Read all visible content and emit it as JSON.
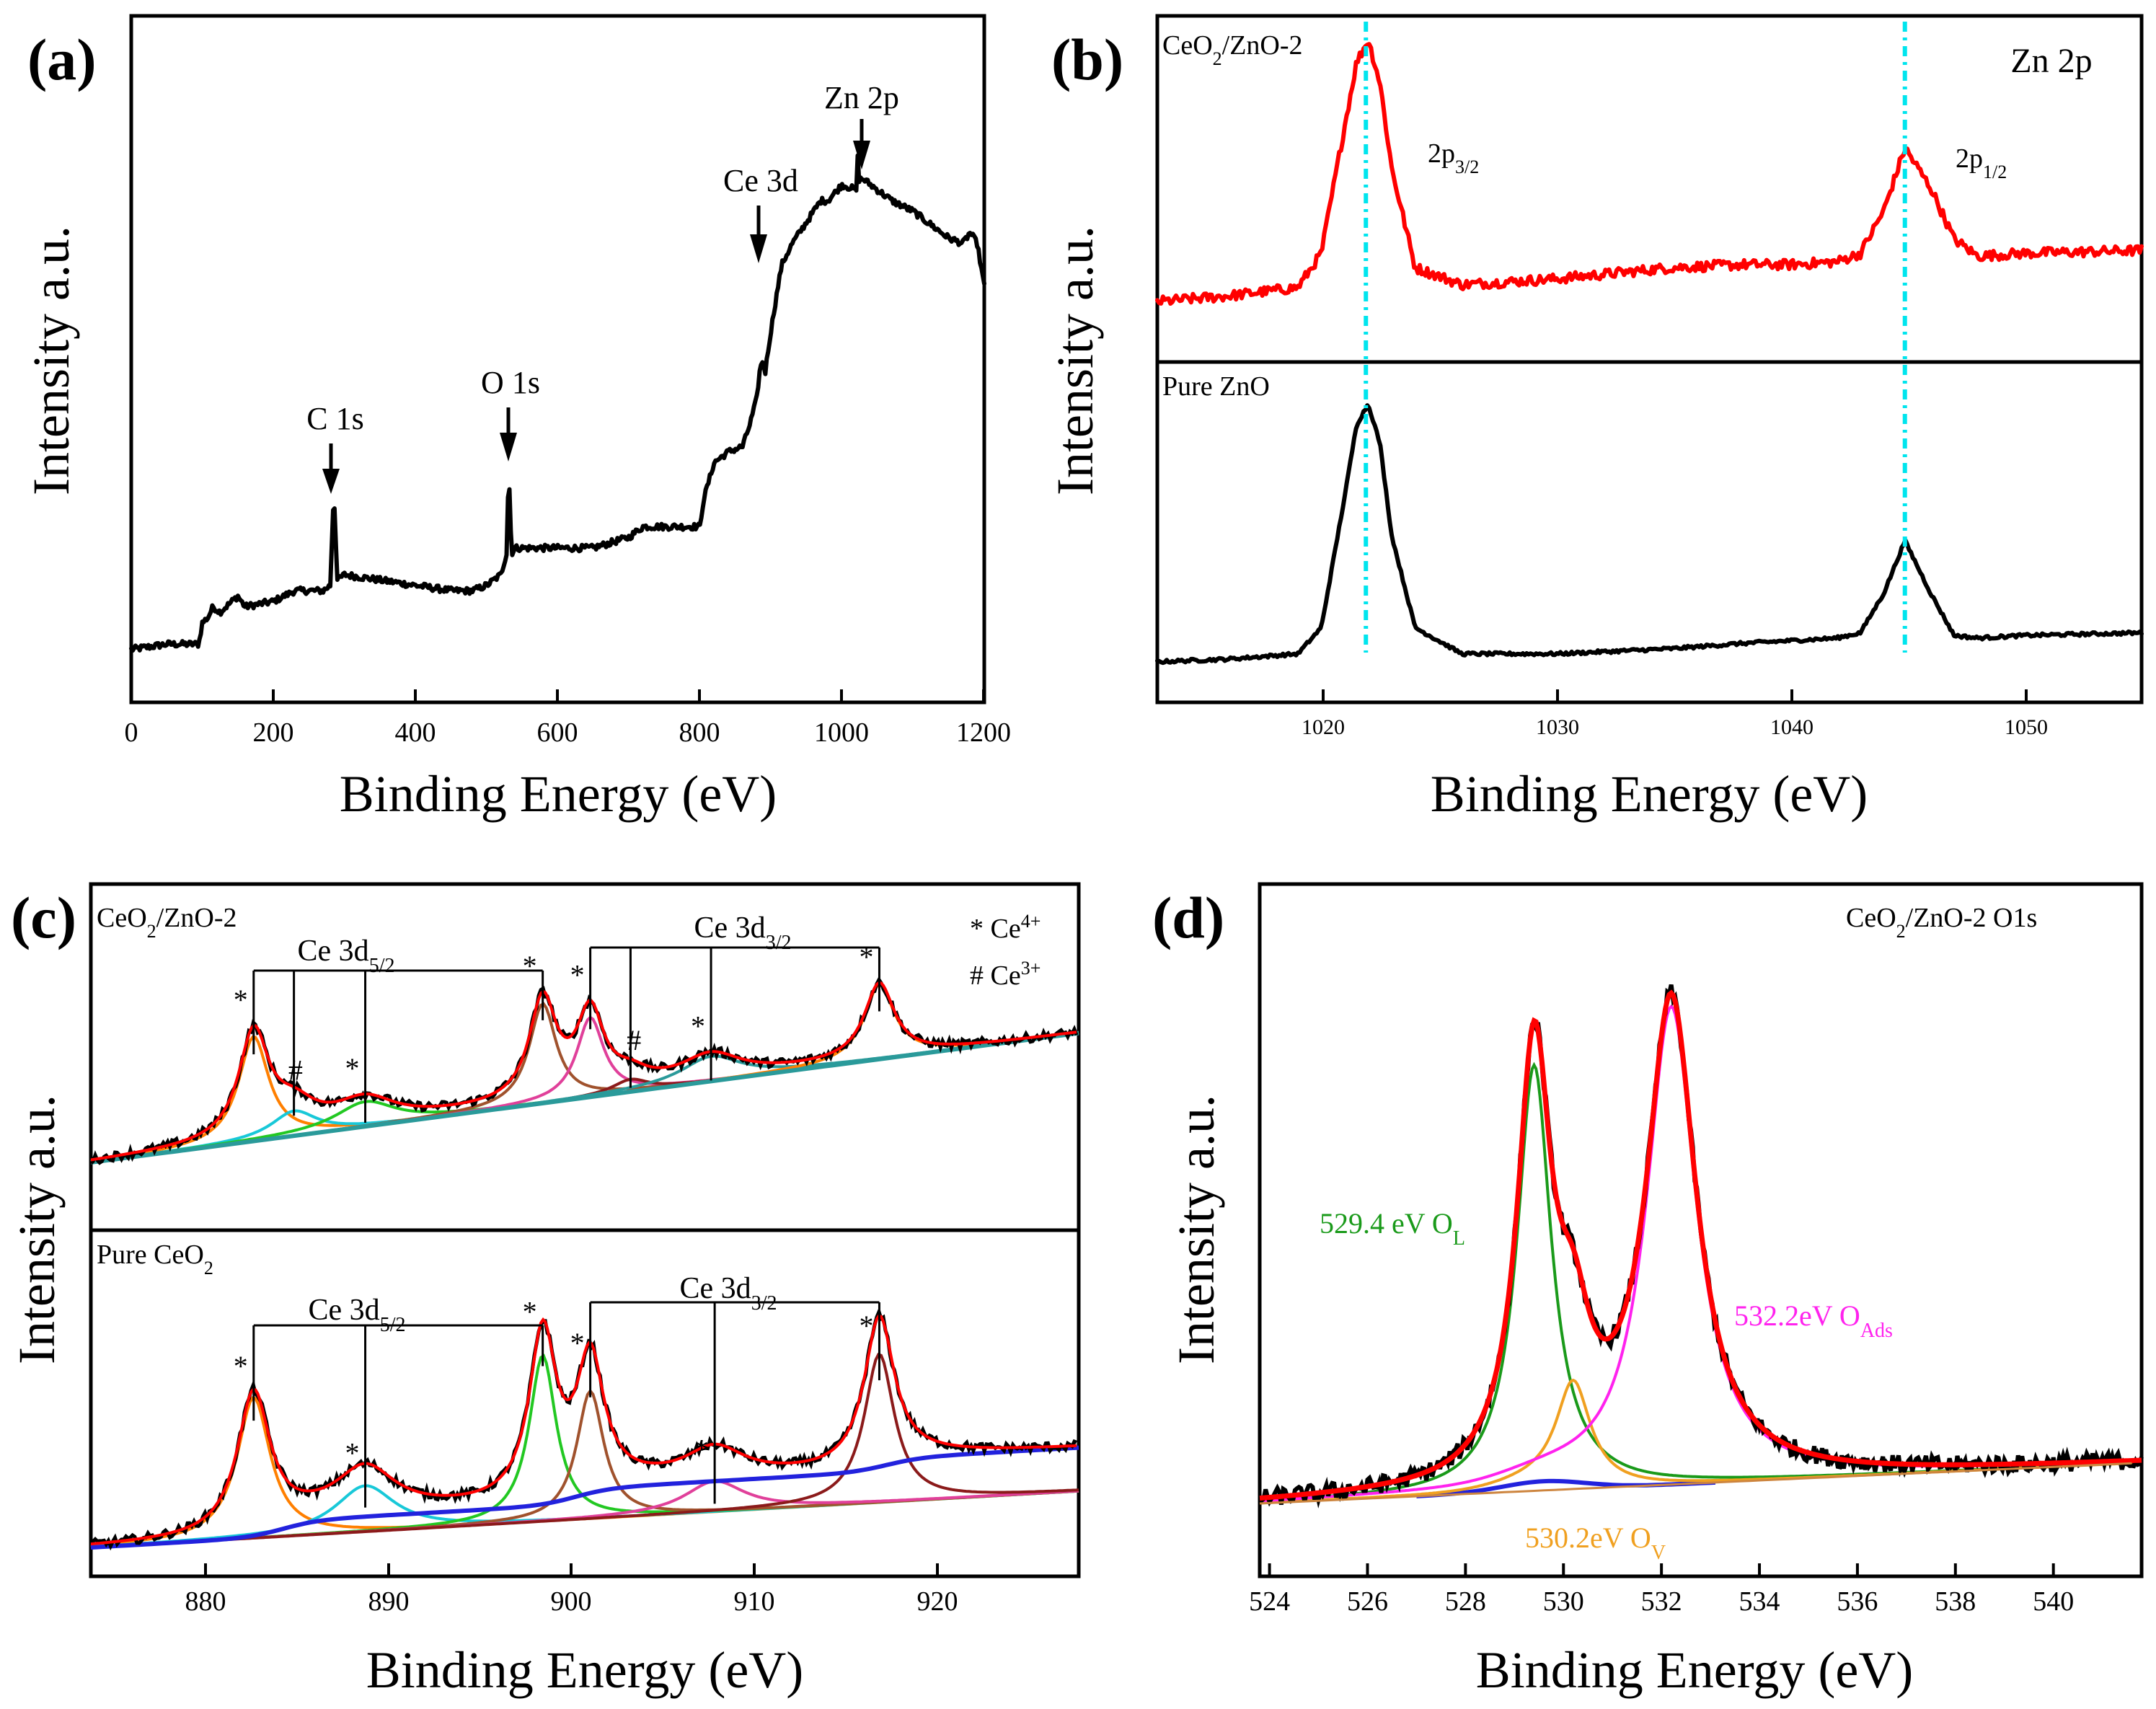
{
  "colors": {
    "data_black": "#000000",
    "fit_red": "#ff0000",
    "guide_cyan": "#00e5ee",
    "ol_green": "#1a9a1a",
    "ov_orange": "#f0a020",
    "oads_magenta": "#ff22ee",
    "bg_blue": "#2222dd",
    "c_orange": "#ff7f00",
    "c_cyan": "#18c8d8",
    "c_green": "#22c822",
    "c_brown": "#a0522d",
    "c_pink": "#e0409a",
    "c_darkred": "#8b1a1a",
    "c_teal": "#2a9a9a"
  },
  "chart_data": [
    {
      "panel": "(a)",
      "type": "line",
      "xlabel": "Binding Energy (eV)",
      "ylabel": "Intensity a.u.",
      "xlim": [
        0,
        1200
      ],
      "ylim": [
        0,
        1
      ],
      "xticks": [
        0,
        200,
        400,
        600,
        800,
        1000,
        1200
      ],
      "annotations": [
        {
          "text": "C 1s",
          "x": 285
        },
        {
          "text": "O 1s",
          "x": 531
        },
        {
          "text": "Ce 3d",
          "x": 885
        },
        {
          "text": "Zn 2p",
          "x": 1022
        }
      ],
      "series": [
        {
          "name": "survey",
          "x": [
            0,
            50,
            95,
            100,
            108,
            115,
            125,
            150,
            160,
            200,
            230,
            250,
            270,
            280,
            285,
            290,
            300,
            350,
            400,
            450,
            480,
            500,
            520,
            528,
            531,
            535,
            540,
            600,
            650,
            700,
            720,
            760,
            800,
            805,
            820,
            840,
            860,
            870,
            880,
            884,
            888,
            892,
            898,
            905,
            915,
            930,
            950,
            970,
            980,
            1000,
            1020,
            1022,
            1024,
            1030,
            1050,
            1070,
            1100,
            1130,
            1150,
            1170,
            1180,
            1190,
            1200
          ],
          "y": [
            0.08,
            0.09,
            0.09,
            0.13,
            0.14,
            0.16,
            0.15,
            0.18,
            0.16,
            0.17,
            0.19,
            0.19,
            0.19,
            0.2,
            0.38,
            0.21,
            0.22,
            0.21,
            0.2,
            0.19,
            0.19,
            0.2,
            0.22,
            0.26,
            0.42,
            0.26,
            0.27,
            0.27,
            0.27,
            0.29,
            0.31,
            0.31,
            0.31,
            0.36,
            0.43,
            0.45,
            0.46,
            0.5,
            0.55,
            0.6,
            0.62,
            0.6,
            0.66,
            0.72,
            0.8,
            0.84,
            0.88,
            0.92,
            0.92,
            0.95,
            0.94,
            1.0,
            0.96,
            0.96,
            0.94,
            0.92,
            0.9,
            0.87,
            0.85,
            0.84,
            0.86,
            0.84,
            0.76
          ]
        }
      ]
    },
    {
      "panel": "(b)",
      "type": "line",
      "xlabel": "Binding Energy (eV)",
      "ylabel": "Intensity a.u.",
      "xlim": [
        1013,
        1055
      ],
      "xticks": [
        1020,
        1030,
        1040,
        1050
      ],
      "title_right": "Zn 2p",
      "guide_lines": [
        1021.9,
        1044.9
      ],
      "subplots": [
        {
          "label": "CeO2/ZnO-2",
          "peaks": [
            {
              "text": "2p3/2",
              "x": 1021.9
            },
            {
              "text": "2p1/2",
              "x": 1044.9
            }
          ],
          "series": {
            "x": [
              1013,
              1016,
              1019,
              1020,
              1021,
              1021.5,
              1022,
              1022.5,
              1023,
              1024,
              1026,
              1030,
              1035,
              1038,
              1040,
              1042,
              1043,
              1044,
              1044.9,
              1046,
              1047,
              1048,
              1050,
              1055
            ],
            "y": [
              0.08,
              0.1,
              0.13,
              0.25,
              0.7,
              0.92,
              1.0,
              0.85,
              0.55,
              0.2,
              0.14,
              0.16,
              0.2,
              0.21,
              0.21,
              0.22,
              0.25,
              0.4,
              0.62,
              0.48,
              0.3,
              0.24,
              0.25,
              0.26
            ]
          }
        },
        {
          "label": "Pure ZnO",
          "series": {
            "x": [
              1013,
              1016,
              1019,
              1020,
              1021,
              1021.5,
              1022,
              1022.5,
              1023,
              1024,
              1026,
              1030,
              1035,
              1038,
              1040,
              1042,
              1043,
              1044,
              1044.9,
              1046,
              1047,
              1048,
              1050,
              1055
            ],
            "y": [
              0.02,
              0.03,
              0.05,
              0.15,
              0.65,
              0.92,
              1.0,
              0.85,
              0.5,
              0.15,
              0.05,
              0.05,
              0.07,
              0.09,
              0.1,
              0.11,
              0.13,
              0.28,
              0.48,
              0.28,
              0.12,
              0.11,
              0.12,
              0.13
            ]
          }
        }
      ]
    },
    {
      "panel": "(c)",
      "type": "line",
      "xlabel": "Binding Energy (eV)",
      "ylabel": "Intensity a.u.",
      "xlim": [
        873.5,
        927.5
      ],
      "xticks": [
        880,
        890,
        900,
        910,
        920
      ],
      "legend": [
        "* Ce4+",
        "# Ce3+"
      ],
      "subplots": [
        {
          "label": "CeO2/ZnO-2",
          "groups": [
            {
              "text": "Ce 3d5/2",
              "lines": [
                882.4,
                884.6,
                888.5,
                898.2
              ]
            },
            {
              "text": "Ce 3d3/2",
              "lines": [
                900.8,
                903.0,
                907.4,
                916.6
              ]
            }
          ],
          "markers": [
            {
              "sym": "*",
              "x": 882.4
            },
            {
              "sym": "#",
              "x": 885.4
            },
            {
              "sym": "*",
              "x": 888.5
            },
            {
              "sym": "*",
              "x": 898.2
            },
            {
              "sym": "*",
              "x": 900.8
            },
            {
              "sym": "#",
              "x": 903.9
            },
            {
              "sym": "*",
              "x": 907.4
            },
            {
              "sym": "*",
              "x": 916.6
            }
          ],
          "baseline": [
            873.5,
            0.0,
            927.5,
            0.52
          ],
          "peaks": [
            {
              "x0": 882.4,
              "a": 0.42,
              "w": 1.0
            },
            {
              "x0": 884.6,
              "a": 0.1,
              "w": 1.5
            },
            {
              "x0": 888.5,
              "a": 0.1,
              "w": 2.0
            },
            {
              "x0": 898.2,
              "a": 0.4,
              "w": 0.9
            },
            {
              "x0": 900.8,
              "a": 0.32,
              "w": 0.9
            },
            {
              "x0": 903.0,
              "a": 0.05,
              "w": 1.2
            },
            {
              "x0": 907.4,
              "a": 0.1,
              "w": 2.0
            },
            {
              "x0": 916.6,
              "a": 0.3,
              "w": 1.0
            }
          ]
        },
        {
          "label": "Pure CeO2",
          "groups": [
            {
              "text": "Ce 3d5/2",
              "lines": [
                882.4,
                888.5,
                898.2
              ]
            },
            {
              "text": "Ce 3d3/2",
              "lines": [
                900.8,
                907.6,
                916.6
              ]
            }
          ],
          "markers": [
            {
              "sym": "*",
              "x": 882.4
            },
            {
              "sym": "*",
              "x": 888.5
            },
            {
              "sym": "*",
              "x": 898.2
            },
            {
              "sym": "*",
              "x": 900.8
            },
            {
              "sym": "*",
              "x": 907.6
            },
            {
              "sym": "*",
              "x": 916.6
            }
          ],
          "baseline": [
            873.5,
            0.0,
            927.5,
            0.22
          ],
          "peaks": [
            {
              "x0": 882.4,
              "a": 0.55,
              "w": 1.1
            },
            {
              "x0": 888.5,
              "a": 0.18,
              "w": 2.0
            },
            {
              "x0": 898.2,
              "a": 0.65,
              "w": 0.9
            },
            {
              "x0": 900.8,
              "a": 0.5,
              "w": 0.9
            },
            {
              "x0": 907.6,
              "a": 0.12,
              "w": 2.0
            },
            {
              "x0": 916.6,
              "a": 0.58,
              "w": 1.0
            }
          ]
        }
      ]
    },
    {
      "panel": "(d)",
      "type": "line",
      "title": "CeO2/ZnO-2 O1s",
      "xlabel": "Binding Energy (eV)",
      "ylabel": "Intensity a.u.",
      "xlim": [
        523.8,
        541.8
      ],
      "xticks": [
        524,
        526,
        528,
        530,
        532,
        534,
        536,
        538,
        540
      ],
      "components": [
        {
          "label": "529.4 eV OL",
          "x0": 529.4,
          "a": 0.82,
          "w": 0.42
        },
        {
          "label": "530.2eV OV",
          "x0": 530.2,
          "a": 0.2,
          "w": 0.42
        },
        {
          "label": "532.2eV OAds",
          "x0": 532.2,
          "a": 0.94,
          "w": 0.62
        }
      ],
      "baseline": [
        523.8,
        0.0,
        541.8,
        0.08
      ]
    }
  ],
  "labels": {
    "a": {
      "panel": "(a)",
      "ylabel": "Intensity a.u.",
      "xlabel": "Binding Energy (eV)",
      "c1s": "C 1s",
      "o1s": "O 1s",
      "ce3d": "Ce 3d",
      "zn2p": "Zn 2p",
      "ticks": [
        "0",
        "200",
        "400",
        "600",
        "800",
        "1000",
        "1200"
      ]
    },
    "b": {
      "panel": "(b)",
      "ylabel": "Intensity a.u.",
      "xlabel": "Binding Energy (eV)",
      "title": "Zn 2p",
      "top_pre": "CeO",
      "top_sub": "2",
      "top_post": "/ZnO-2",
      "bottom": "Pure ZnO",
      "p32_main": "2p",
      "p32_sub": "3/2",
      "p12_main": "2p",
      "p12_sub": "1/2",
      "ticks": [
        "1020",
        "1030",
        "1040",
        "1050"
      ]
    },
    "c": {
      "panel": "(c)",
      "ylabel": "Intensity a.u.",
      "xlabel": "Binding Energy (eV)",
      "top_pre": "CeO",
      "top_sub": "2",
      "top_post": "/ZnO-2",
      "bot_pre": "Pure CeO",
      "bot_sub": "2",
      "d52_main": "Ce 3d",
      "d52_sub": "5/2",
      "d32_main": "Ce 3d",
      "d32_sub": "3/2",
      "leg1_main": "* Ce",
      "leg1_sup": "4+",
      "leg2_main": "# Ce",
      "leg2_sup": "3+",
      "ticks": [
        "880",
        "890",
        "900",
        "910",
        "920"
      ]
    },
    "d": {
      "panel": "(d)",
      "ylabel": "Intensity a.u.",
      "xlabel": "Binding Energy (eV)",
      "title_pre": "CeO",
      "title_sub": "2",
      "title_post": "/ZnO-2 O1s",
      "ol_main": "529.4 eV O",
      "ol_sub": "L",
      "ov_main": "530.2eV O",
      "ov_sub": "V",
      "oads_main": "532.2eV O",
      "oads_sub": "Ads",
      "ticks": [
        "524",
        "526",
        "528",
        "530",
        "532",
        "534",
        "536",
        "538",
        "540"
      ]
    }
  }
}
